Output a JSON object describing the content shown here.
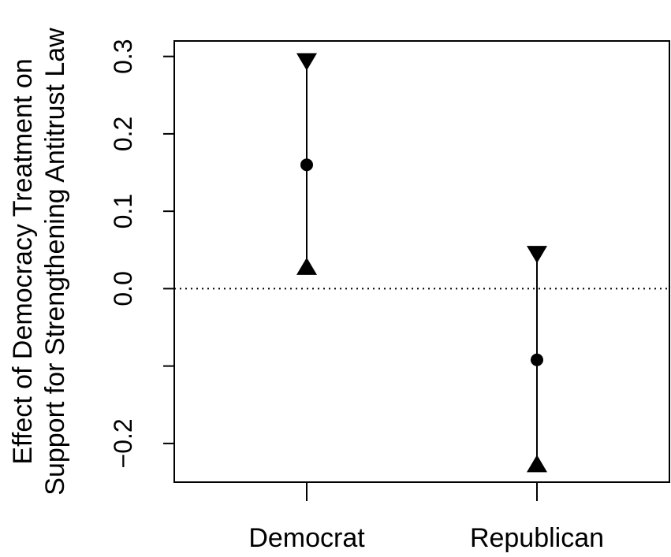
{
  "chart_data": {
    "type": "scatter",
    "title": "",
    "xlabel": "",
    "ylabel_lines": [
      "Effect of Democracy Treatment on",
      "Support for Strengthening Antitrust Law"
    ],
    "categories": [
      "Democrat",
      "Republican"
    ],
    "estimates": [
      0.16,
      -0.092
    ],
    "upper": [
      0.294,
      0.045
    ],
    "lower": [
      0.028,
      -0.227
    ],
    "ylim": [
      -0.25,
      0.32
    ],
    "yticks": [
      -0.2,
      -0.1,
      0.0,
      0.1,
      0.2,
      0.3
    ],
    "ytick_labels": [
      "−0.2",
      "",
      "0.0",
      "0.1",
      "0.2",
      "0.3"
    ],
    "reference_line": 0.0,
    "grid": false
  }
}
